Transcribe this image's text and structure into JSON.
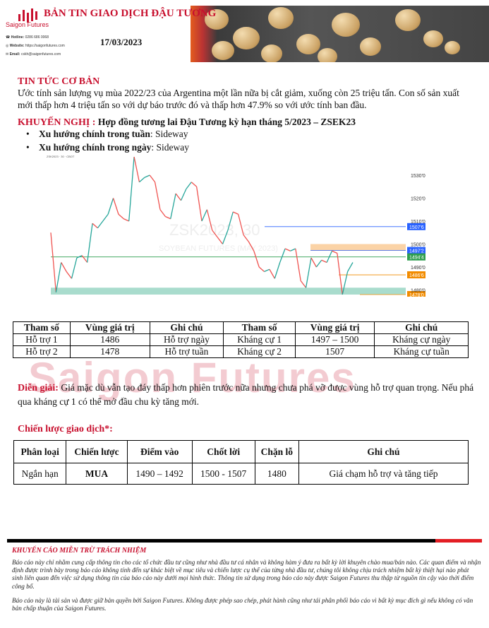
{
  "header": {
    "brand": "Saigon Futures",
    "title": "BẢN TIN GIAO DỊCH ĐẬU TƯƠNG",
    "date": "17/03/2023",
    "hotline_label": "Hotline:",
    "hotline": "0286 686 0068",
    "website_label": "Website:",
    "website": "https://saigonfutures.com",
    "email_label": "Email:",
    "email": "cskh@saigonfutures.com"
  },
  "news": {
    "heading": "TIN TỨC CƠ BẢN",
    "body": "Ước tính sản lượng vụ mùa 2022/23 của Argentina một lần nữa bị cắt giảm, xuống còn 25 triệu tấn. Con số sản xuất mới thấp hơn 4 triệu tấn so với dự báo trước đó và thấp hơn 47.9% so với ước tính ban đầu."
  },
  "recommendation": {
    "heading": "KHUYẾN NGHỊ :",
    "contract": " Hợp đồng tương lai Đậu Tương kỳ hạn tháng 5/2023 – ZSEK23",
    "items": [
      {
        "label": "Xu hướng chính trong tuần",
        "value": ": Sideway"
      },
      {
        "label": "Xu hướng chính trong ngày",
        "value": ": Sideway"
      }
    ]
  },
  "chart_data": {
    "type": "line",
    "symbol": "ZSK2023 · 30 · CBOT",
    "watermark": "ZSK2023, 30",
    "watermark_sub": "SOYBEAN FUTURES (MAY 2023)",
    "ylim": [
      1476,
      1540
    ],
    "yticks": [
      "1530'0",
      "1520'0",
      "1510'0",
      "1500'0",
      "1490'0",
      "1480'0"
    ],
    "ytick_values": [
      1530,
      1520,
      1510,
      1500,
      1490,
      1480
    ],
    "prices": [
      1505,
      1479,
      1492,
      1488,
      1485,
      1494,
      1495,
      1492,
      1509,
      1507,
      1510,
      1513,
      1520,
      1513,
      1511,
      1510,
      1538,
      1527,
      1529,
      1530,
      1527,
      1515,
      1512,
      1511,
      1522,
      1519,
      1524,
      1527,
      1525,
      1510,
      1515,
      1506,
      1503,
      1500,
      1506,
      1514,
      1513,
      1504,
      1501,
      1497,
      1490,
      1488,
      1489,
      1485,
      1492,
      1498,
      1497,
      1498,
      1484,
      1481,
      1494,
      1490,
      1493,
      1492,
      1497,
      1496,
      1478,
      1488,
      1492
    ],
    "levels": [
      {
        "label": "1507'6",
        "value": 1507.6,
        "color": "#2962ff"
      },
      {
        "label": "1497'2",
        "value": 1497.2,
        "color": "#2962ff"
      },
      {
        "label": "1494'4",
        "value": 1494.4,
        "color": "#2e9e4f"
      },
      {
        "label": "1486'6",
        "value": 1486.6,
        "color": "#f28c00"
      },
      {
        "label": "1478'0",
        "value": 1478,
        "color": "#f28c00"
      }
    ],
    "zones": [
      {
        "from": 1497.2,
        "to": 1500,
        "color": "#fbd3a6"
      },
      {
        "from": 1478,
        "to": 1481,
        "color": "#a9dccd"
      }
    ]
  },
  "levels_table": {
    "headers": [
      "Tham số",
      "Vùng giá trị",
      "Ghi chú",
      "Tham số",
      "Vùng giá trị",
      "Ghi chú"
    ],
    "rows": [
      [
        "Hỗ trợ 1",
        "1486",
        "Hỗ trợ ngày",
        "Kháng cự 1",
        "1497 – 1500",
        "Kháng cự ngày"
      ],
      [
        "Hỗ trợ 2",
        "1478",
        "Hỗ trợ tuần",
        "Kháng cự 2",
        "1507",
        "Kháng cự tuần"
      ]
    ]
  },
  "watermark": "Saigon Futures",
  "explanation": {
    "heading": "Diễn giải:",
    "body": " Giá mặc dù vẫn tạo đáy thấp hơn phiên trước nữa nhưng chưa phá vỡ được vùng hỗ trợ quan trọng. Nếu phá qua kháng cự 1 có thể mở đầu chu kỳ tăng mới."
  },
  "strategy": {
    "heading": "Chiến lược giao dịch*:",
    "headers": [
      "Phân loại",
      "Chiến lược",
      "Điểm vào",
      "Chốt lời",
      "Chặn lỗ",
      "Ghi chú"
    ],
    "rows": [
      [
        "Ngắn hạn",
        "MUA",
        "1490 – 1492",
        "1500 - 1507",
        "1480",
        "Giá chạm hỗ trợ và tăng tiếp"
      ]
    ]
  },
  "disclaimer": {
    "heading": "KHUYẾN CÁO MIỄN TRỪ TRÁCH NHIỆM",
    "p1": "Báo cáo này chỉ nhằm cung cấp thông tin cho các tổ chức đầu tư cũng như nhà đầu tư cá nhân và không hàm ý đưa ra bất kỳ lời khuyên chào mua/bán nào. Các quan điểm và nhận định được trình bày trong báo cáo không tính đến sự khác biệt về mục tiêu và chiến lược cụ thể của từng nhà đầu tư, chúng tôi không chịu trách nhiệm bất kỳ thiệt hại nào phát sinh liên quan đến việc sử dụng thông tin của báo cáo này dưới mọi hình thức. Thông tin sử dụng trong báo cáo này được Saigon Futures thu thập từ nguồn tin cậy vào thời điểm công bố.",
    "p2": "Báo cáo này là tài sản và được giữ bản quyền bởi Saigon Futures. Không được phép sao chép, phát hành cũng như tái phân phối báo cáo vì bất kỳ mục đích gì nếu không có văn bản chấp thuận của Saigon Futures."
  },
  "colors": {
    "brand_red": "#c8102e",
    "up": "#26a69a",
    "down": "#ef5350"
  }
}
